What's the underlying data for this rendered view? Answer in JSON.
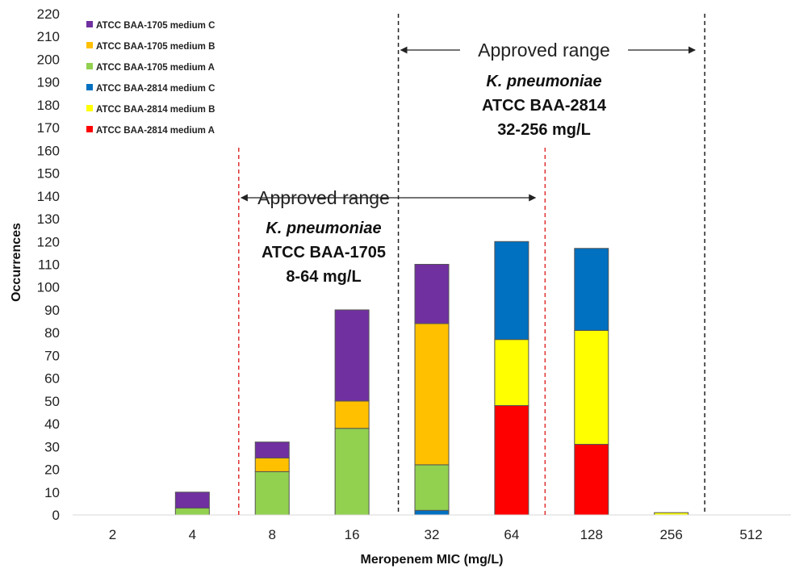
{
  "chart_data": {
    "type": "bar",
    "stacked": true,
    "categories": [
      "2",
      "4",
      "8",
      "16",
      "32",
      "64",
      "128",
      "256",
      "512"
    ],
    "series": [
      {
        "name": "ATCC BAA-2814 medium A",
        "color": "#ff0000",
        "values": [
          0,
          0,
          0,
          0,
          0,
          48,
          31,
          0,
          0
        ]
      },
      {
        "name": "ATCC BAA-2814 medium B",
        "color": "#ffff00",
        "values": [
          0,
          0,
          0,
          0,
          0,
          29,
          50,
          1,
          0
        ]
      },
      {
        "name": "ATCC BAA-2814 medium C",
        "color": "#0070c0",
        "values": [
          0,
          0,
          0,
          0,
          2,
          43,
          36,
          0,
          0
        ]
      },
      {
        "name": "ATCC BAA-1705 medium A",
        "color": "#92d050",
        "values": [
          0,
          3,
          19,
          38,
          20,
          0,
          0,
          0,
          0
        ]
      },
      {
        "name": "ATCC BAA-1705 medium B",
        "color": "#ffc000",
        "values": [
          0,
          0,
          6,
          12,
          62,
          0,
          0,
          0,
          0
        ]
      },
      {
        "name": "ATCC BAA-1705 medium C",
        "color": "#7030a0",
        "values": [
          0,
          7,
          7,
          40,
          26,
          0,
          0,
          0,
          0
        ]
      }
    ],
    "legend_order": [
      "ATCC BAA-1705 medium C",
      "ATCC BAA-1705 medium B",
      "ATCC BAA-1705 medium A",
      "ATCC BAA-2814 medium C",
      "ATCC BAA-2814 medium B",
      "ATCC BAA-2814 medium A"
    ],
    "ylim": [
      0,
      220
    ],
    "yticks": [
      0,
      10,
      20,
      30,
      40,
      50,
      60,
      70,
      80,
      90,
      100,
      110,
      120,
      130,
      140,
      150,
      160,
      170,
      180,
      190,
      200,
      210,
      220
    ],
    "xlabel": "Meropenem MIC (mg/L)",
    "ylabel": "Occurrences",
    "grid": false,
    "legend_position": "top-left",
    "annotations": [
      {
        "id": "baa2814",
        "line_color": "#222222",
        "range_from": "32",
        "range_to": "256",
        "lines": [
          "Approved range",
          "K. pneumoniae",
          "ATCC BAA-2814",
          "32-256 mg/L"
        ]
      },
      {
        "id": "baa1705",
        "line_color": "#e03030",
        "range_from": "8",
        "range_to": "64",
        "lines": [
          "Approved range",
          "K. pneumoniae",
          "ATCC BAA-1705",
          "8-64 mg/L"
        ]
      }
    ]
  }
}
